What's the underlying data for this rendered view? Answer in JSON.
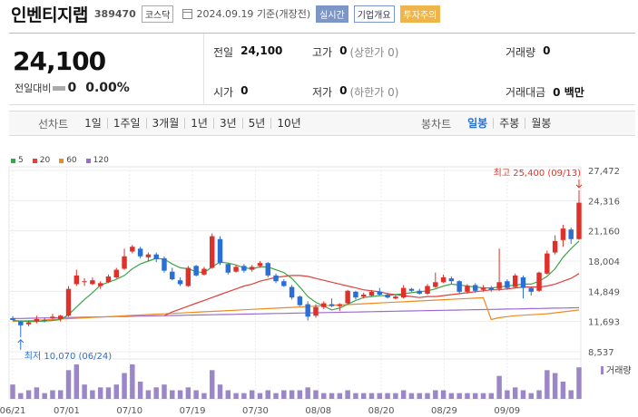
{
  "header": {
    "name": "인벤티지랩",
    "code": "389470",
    "market_tag": "코스닥",
    "date": "2024.09.19",
    "date_suffix": "기준(개장전)",
    "realtime_tag": "실시간",
    "overview_tag": "기업개요",
    "caution_tag": "투자주의"
  },
  "price": {
    "current": "24,100",
    "change_label": "전일대비",
    "change": "0",
    "change_pct": "0.00%"
  },
  "summary": {
    "prev_label": "전일",
    "prev_value": "24,100",
    "high_label": "고가",
    "high_value": "0",
    "high_sub": "(상한가 0)",
    "volume_label": "거래량",
    "volume_value": "0",
    "open_label": "시가",
    "open_value": "0",
    "low_label": "저가",
    "low_value": "0",
    "low_sub": "(하한가 0)",
    "amount_label": "거래대금",
    "amount_value": "0 백만"
  },
  "period_bar": {
    "line_label": "선차트",
    "line_items": [
      "1일",
      "1주일",
      "3개월",
      "1년",
      "3년",
      "5년",
      "10년"
    ],
    "candle_label": "봉차트",
    "candle_items": [
      "일봉",
      "주봉",
      "월봉"
    ],
    "candle_active": "일봉"
  },
  "chart_data": {
    "type": "candlestick",
    "legend": [
      {
        "name": "5",
        "color": "#3aa64a"
      },
      {
        "name": "20",
        "color": "#e0403a"
      },
      {
        "name": "60",
        "color": "#f08a1e"
      },
      {
        "name": "120",
        "color": "#9b6bd1"
      }
    ],
    "y_ticks": [
      "27,472",
      "24,316",
      "21,160",
      "18,004",
      "14,849",
      "11,693",
      "8,537"
    ],
    "y_range": [
      8537,
      27472
    ],
    "x_labels": [
      {
        "i": 0,
        "label": "06/21"
      },
      {
        "i": 6,
        "label": "07/01"
      },
      {
        "i": 13,
        "label": "07/10"
      },
      {
        "i": 20,
        "label": "07/19"
      },
      {
        "i": 27,
        "label": "07/30"
      },
      {
        "i": 34,
        "label": "08/08"
      },
      {
        "i": 41,
        "label": "08/20"
      },
      {
        "i": 48,
        "label": "08/29"
      },
      {
        "i": 55,
        "label": "09/09"
      }
    ],
    "high_annotation": "최고 25,400 (09/13)",
    "low_annotation": "최저 10,070 (06/24)",
    "volume_label": "거래량",
    "candles": [
      [
        12050,
        11850,
        12250,
        11800
      ],
      [
        11700,
        11300,
        11800,
        10070
      ],
      [
        11400,
        11600,
        11800,
        11200
      ],
      [
        11700,
        11950,
        12300,
        11500
      ],
      [
        11850,
        11800,
        12100,
        11600
      ],
      [
        12050,
        12200,
        12500,
        11900
      ],
      [
        11950,
        12300,
        12400,
        11700
      ],
      [
        12300,
        15100,
        15400,
        12200
      ],
      [
        15600,
        16500,
        17100,
        15400
      ],
      [
        15800,
        15900,
        16200,
        15400
      ],
      [
        15600,
        16000,
        16300,
        15500
      ],
      [
        15400,
        15700,
        15900,
        15100
      ],
      [
        15800,
        16400,
        16600,
        15700
      ],
      [
        16300,
        17100,
        17300,
        16200
      ],
      [
        17200,
        18500,
        19300,
        17100
      ],
      [
        19000,
        19500,
        19700,
        18800
      ],
      [
        19300,
        18500,
        19500,
        18300
      ],
      [
        18400,
        18700,
        18900,
        18000
      ],
      [
        18700,
        18200,
        18900,
        17900
      ],
      [
        18300,
        17000,
        18500,
        16800
      ],
      [
        16900,
        16100,
        17300,
        16000
      ],
      [
        16000,
        15600,
        16300,
        15400
      ],
      [
        15400,
        17300,
        17500,
        15300
      ],
      [
        17500,
        16500,
        17600,
        16400
      ],
      [
        16600,
        17200,
        17400,
        16500
      ],
      [
        17300,
        20600,
        20900,
        17200
      ],
      [
        20300,
        17800,
        20600,
        17600
      ],
      [
        17700,
        16800,
        17800,
        16600
      ],
      [
        16900,
        17400,
        17600,
        16800
      ],
      [
        17500,
        17000,
        17700,
        16800
      ],
      [
        17100,
        17400,
        17600,
        16900
      ],
      [
        17500,
        17800,
        18000,
        17300
      ],
      [
        17800,
        16500,
        17900,
        16300
      ],
      [
        16500,
        15900,
        16700,
        15700
      ],
      [
        15900,
        15400,
        16100,
        15300
      ],
      [
        15300,
        14200,
        15500,
        14000
      ],
      [
        14300,
        13400,
        14400,
        13300
      ],
      [
        13500,
        12200,
        13800,
        11800
      ],
      [
        12300,
        13200,
        13500,
        12100
      ],
      [
        13200,
        13600,
        13800,
        13000
      ],
      [
        13500,
        13300,
        14100,
        13200
      ],
      [
        13300,
        13500,
        13600,
        12800
      ],
      [
        13600,
        14900,
        15000,
        13500
      ],
      [
        14800,
        14200,
        14900,
        14000
      ],
      [
        14300,
        14500,
        14700,
        14100
      ],
      [
        14400,
        14800,
        15000,
        14300
      ],
      [
        14800,
        14500,
        15200,
        14400
      ],
      [
        14500,
        14200,
        14700,
        14100
      ],
      [
        14100,
        14300,
        14500,
        14000
      ],
      [
        14200,
        15200,
        15500,
        14100
      ],
      [
        15100,
        14900,
        15200,
        14800
      ],
      [
        14900,
        14600,
        15100,
        14500
      ],
      [
        14600,
        15400,
        15600,
        14500
      ],
      [
        15300,
        15800,
        16800,
        15200
      ],
      [
        15800,
        16300,
        16600,
        15700
      ],
      [
        16200,
        15900,
        16400,
        15600
      ],
      [
        15900,
        14800,
        16000,
        14600
      ],
      [
        14800,
        15400,
        15600,
        14600
      ],
      [
        15500,
        14900,
        15700,
        14700
      ],
      [
        15000,
        15200,
        15500,
        14800
      ],
      [
        15200,
        15000,
        15400,
        14800
      ],
      [
        15100,
        15800,
        19300,
        14900
      ],
      [
        15900,
        15200,
        16100,
        15000
      ],
      [
        15300,
        16500,
        16700,
        15200
      ],
      [
        16300,
        15200,
        16500,
        14100
      ],
      [
        15200,
        14800,
        15300,
        14400
      ],
      [
        14900,
        16800,
        16900,
        14800
      ],
      [
        16700,
        18800,
        19100,
        16600
      ],
      [
        18900,
        20100,
        20700,
        18700
      ],
      [
        20200,
        21400,
        21800,
        19500
      ],
      [
        21300,
        20300,
        21500,
        19800
      ],
      [
        20300,
        24100,
        25400,
        20200
      ]
    ],
    "ma5": [
      11800,
      11750,
      11700,
      11700,
      11750,
      11800,
      11900,
      12400,
      13200,
      14000,
      14700,
      15500,
      15800,
      16100,
      16500,
      17200,
      17700,
      18000,
      18300,
      18200,
      17700,
      17300,
      17200,
      16900,
      16800,
      17400,
      17900,
      17800,
      17600,
      17300,
      17200,
      17400,
      17400,
      17100,
      16800,
      16200,
      15300,
      14300,
      13700,
      13300,
      12900,
      13100,
      13500,
      13900,
      14200,
      14300,
      14400,
      14400,
      14500,
      14600,
      14700,
      14800,
      14900,
      15100,
      15400,
      15600,
      15500,
      15400,
      15300,
      15200,
      15200,
      15300,
      15400,
      15500,
      15600,
      15600,
      15900,
      16400,
      17200,
      18400,
      19300,
      20100
    ],
    "ma20": [
      null,
      null,
      null,
      null,
      null,
      null,
      null,
      null,
      null,
      null,
      null,
      null,
      null,
      null,
      null,
      null,
      null,
      null,
      null,
      12300,
      12700,
      13000,
      13300,
      13600,
      13900,
      14200,
      14500,
      14800,
      15100,
      15400,
      15600,
      15900,
      16100,
      16300,
      16400,
      16500,
      16500,
      16400,
      16200,
      16000,
      15800,
      15600,
      15400,
      15200,
      15000,
      14900,
      14800,
      14600,
      14500,
      14400,
      14300,
      14200,
      14300,
      14300,
      14400,
      14500,
      14600,
      14700,
      14800,
      14900,
      15000,
      15000,
      15100,
      15200,
      15300,
      15300,
      15300,
      15400,
      15600,
      15900,
      16200,
      16700
    ],
    "ma60": [
      null,
      null,
      null,
      null,
      null,
      null,
      null,
      null,
      null,
      null,
      null,
      null,
      null,
      null,
      null,
      null,
      null,
      null,
      null,
      null,
      null,
      null,
      null,
      null,
      null,
      null,
      null,
      null,
      null,
      null,
      null,
      null,
      null,
      null,
      null,
      null,
      null,
      null,
      null,
      null,
      null,
      null,
      null,
      null,
      null,
      null,
      null,
      null,
      null,
      null,
      null,
      null,
      null,
      null,
      null,
      null,
      null,
      null,
      null,
      null,
      11900,
      12100,
      12200,
      12300,
      12350,
      12400,
      12450,
      12500,
      12600,
      12700,
      12800,
      12900
    ],
    "ma120": [],
    "volumes": [
      5,
      2,
      3,
      4,
      2,
      3,
      3,
      10,
      12,
      5,
      3,
      4,
      4,
      5,
      9,
      12,
      6,
      3,
      4,
      5,
      3,
      3,
      4,
      3,
      2,
      10,
      5,
      3,
      2,
      2,
      3,
      2,
      3,
      2,
      3,
      3,
      3,
      4,
      3,
      2,
      2,
      2,
      3,
      2,
      2,
      2,
      2,
      2,
      2,
      3,
      2,
      2,
      2,
      3,
      3,
      2,
      2,
      2,
      2,
      2,
      2,
      8,
      3,
      4,
      3,
      2,
      3,
      10,
      9,
      6,
      3,
      11
    ]
  }
}
